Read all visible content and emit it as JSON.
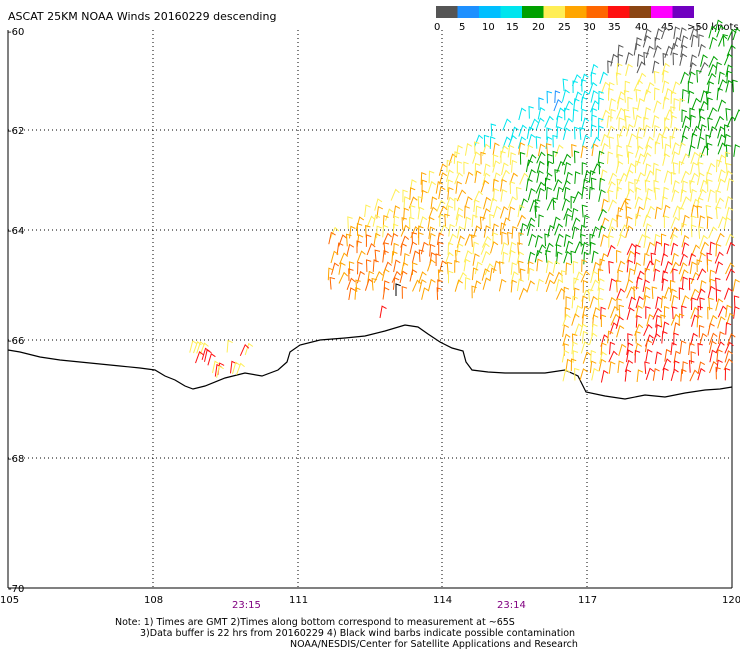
{
  "title": "ASCAT 25KM NOAA Winds 20160229 descending",
  "legend": {
    "labels": [
      "0",
      "5",
      "10",
      "15",
      "20",
      "25",
      "30",
      "35",
      "40",
      "45",
      ">50 knots"
    ],
    "colors": [
      "#555555",
      "#1E90FF",
      "#00BFFF",
      "#00E5EE",
      "#00A000",
      "#FFEE55",
      "#FFA500",
      "#FF6600",
      "#FF1010",
      "#8B4513",
      "#FF00FF",
      "#7000C0"
    ]
  },
  "lat_labels": [
    "-60",
    "-62",
    "-64",
    "-66",
    "-68",
    "-70"
  ],
  "lon_labels": [
    "105",
    "108",
    "111",
    "114",
    "117",
    "120"
  ],
  "times": [
    "23:15",
    "23:14"
  ],
  "notes": [
    "Note: 1) Times are GMT 2)Times along bottom correspond to measurement at ~65S",
    "3)Data buffer is 22 hrs from 20160229 4) Black wind barbs indicate possible contamination",
    "NOAA/NESDIS/Center for Satellite Applications and Research"
  ]
}
